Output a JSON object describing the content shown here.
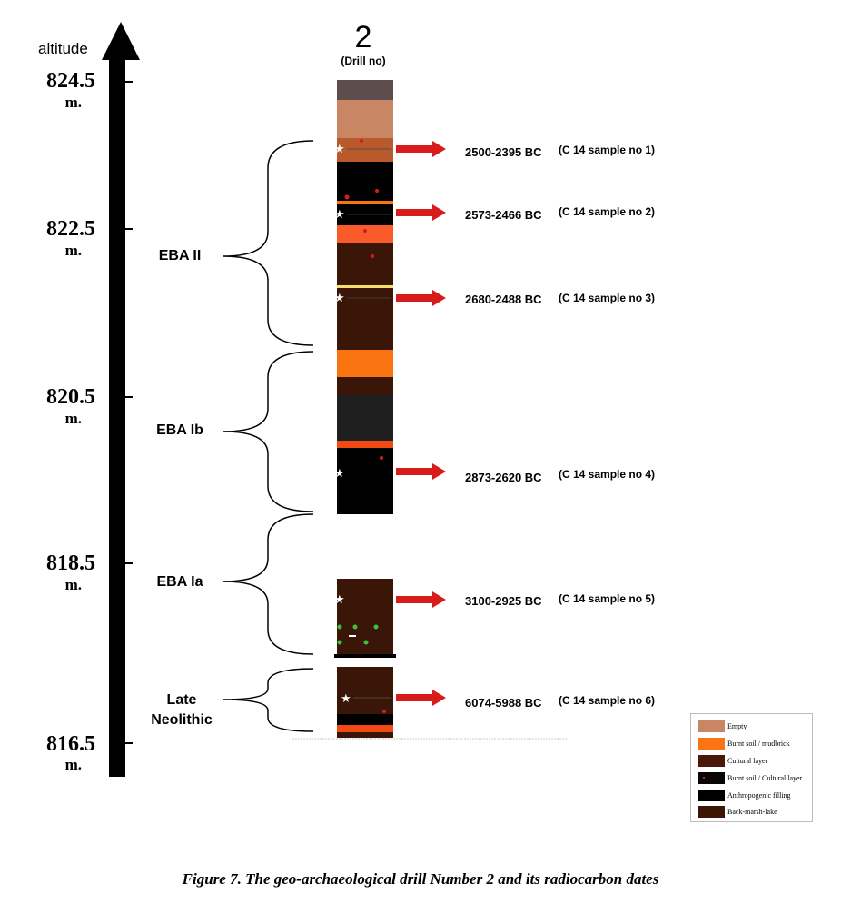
{
  "axis": {
    "title": "altitude",
    "unit": "m.",
    "ticks": [
      "824.5",
      "822.5",
      "820.5",
      "818.5",
      "816.5"
    ]
  },
  "drill": {
    "number": "2",
    "subtitle": "(Drill no)"
  },
  "periods": [
    "EBA II",
    "EBA Ib",
    "EBA Ia",
    "Late Neolithic"
  ],
  "dates": [
    {
      "range": "2500-2395 BC",
      "sample": "(C 14 sample no 1)"
    },
    {
      "range": "2573-2466 BC",
      "sample": "(C 14 sample no 2)"
    },
    {
      "range": "2680-2488 BC",
      "sample": "(C 14 sample no 3)"
    },
    {
      "range": "2873-2620 BC",
      "sample": "(C 14 sample no 4)"
    },
    {
      "range": "3100-2925 BC",
      "sample": "(C 14 sample no 5)"
    },
    {
      "range": "6074-5988 BC",
      "sample": "(C 14 sample no 6)"
    }
  ],
  "legend": [
    {
      "label": "Empty",
      "color": "#c98664"
    },
    {
      "label": "Burnt soil / mudbrick",
      "color": "#fb7412"
    },
    {
      "label": "Cultural layer",
      "color": "#4a1808"
    },
    {
      "label": "Burnt soil / Cultural layer",
      "color": "#0a0606"
    },
    {
      "label": "Anthropogenic filling",
      "color": "#000000"
    },
    {
      "label": "Back-marsh-lake",
      "color": "#3b1605"
    }
  ],
  "colors": {
    "arrow": "#d81c1c",
    "top_cap": "#5e4d4d",
    "empty": "#c98664",
    "burnt_mudbrick": "#fb7412",
    "cultural": "#3a1609",
    "black": "#000000",
    "dark_grey": "#1f1f1f"
  },
  "caption": "Figure 7. The geo-archaeological drill Number 2 and its radiocarbon dates"
}
